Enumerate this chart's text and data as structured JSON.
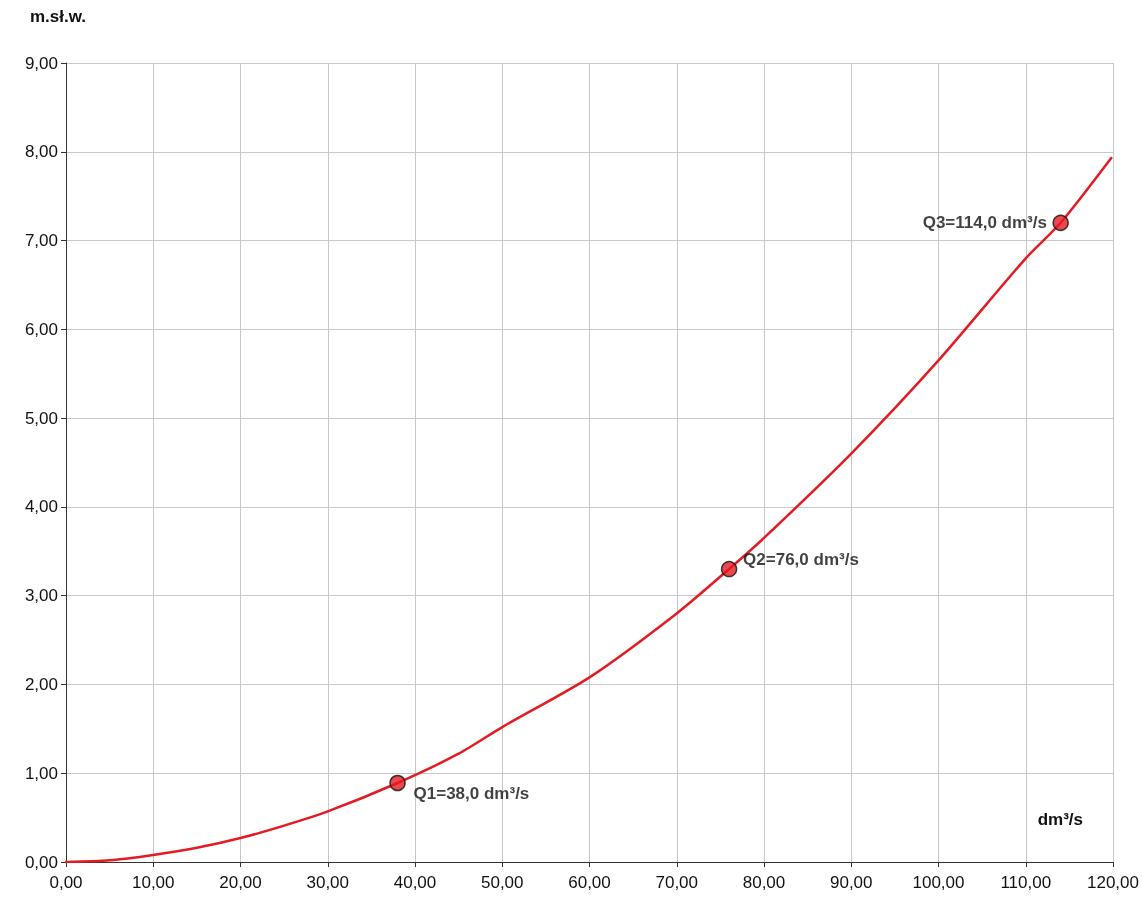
{
  "chart_data": {
    "type": "line",
    "ylabel": "m.sł.w.",
    "xlabel": "dm³/s",
    "series": [
      {
        "color": "#e31b23",
        "marker": "none",
        "x": [
          0,
          5,
          10,
          15,
          20,
          25,
          30,
          38,
          45,
          50,
          60,
          70,
          76,
          80,
          90,
          100,
          110,
          114,
          119.8
        ],
        "values": [
          0,
          0.02,
          0.08,
          0.16,
          0.27,
          0.41,
          0.57,
          0.89,
          1.22,
          1.52,
          2.08,
          2.8,
          3.3,
          3.65,
          4.6,
          5.65,
          6.8,
          7.2,
          7.93
        ]
      },
      {
        "type": "scatter",
        "color": "#e31b23",
        "marker": "circle",
        "x": [
          38,
          76,
          114
        ],
        "values": [
          0.89,
          3.3,
          7.2
        ]
      }
    ],
    "annotations": [
      {
        "text": "Q1=38,0 dm³/s",
        "x": 38,
        "y": 0.89
      },
      {
        "text": "Q2=76,0 dm³/s",
        "x": 76,
        "y": 3.3
      },
      {
        "text": "Q3=114,0 dm³/s",
        "x": 114,
        "y": 7.2
      }
    ],
    "xlim": [
      0,
      120
    ],
    "ylim": [
      0,
      9
    ],
    "xticks": [
      {
        "value": 0,
        "label": "0,00"
      },
      {
        "value": 10,
        "label": "10,00"
      },
      {
        "value": 20,
        "label": "20,00"
      },
      {
        "value": 30,
        "label": "30,00"
      },
      {
        "value": 40,
        "label": "40,00"
      },
      {
        "value": 50,
        "label": "50,00"
      },
      {
        "value": 60,
        "label": "60,00"
      },
      {
        "value": 70,
        "label": "70,00"
      },
      {
        "value": 80,
        "label": "80,00"
      },
      {
        "value": 90,
        "label": "90,00"
      },
      {
        "value": 100,
        "label": "100,00"
      },
      {
        "value": 110,
        "label": "110,00"
      },
      {
        "value": 120,
        "label": "120,00"
      }
    ],
    "yticks": [
      {
        "value": 0,
        "label": "0,00"
      },
      {
        "value": 1,
        "label": "1,00"
      },
      {
        "value": 2,
        "label": "2,00"
      },
      {
        "value": 3,
        "label": "3,00"
      },
      {
        "value": 4,
        "label": "4,00"
      },
      {
        "value": 5,
        "label": "5,00"
      },
      {
        "value": 6,
        "label": "6,00"
      },
      {
        "value": 7,
        "label": "7,00"
      },
      {
        "value": 8,
        "label": "8,00"
      },
      {
        "value": 9,
        "label": "9,00"
      }
    ],
    "grid": true
  }
}
